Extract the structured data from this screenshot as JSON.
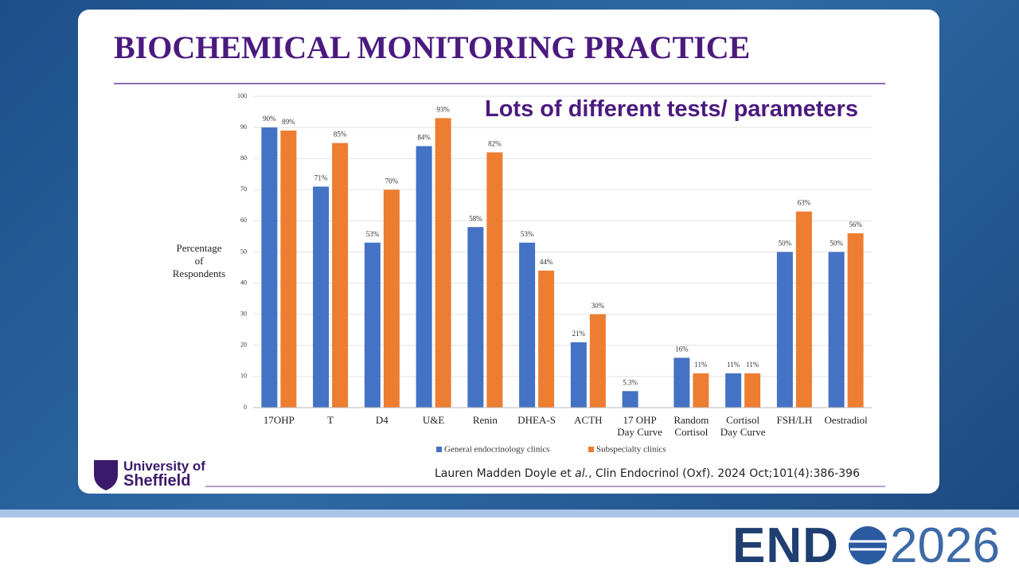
{
  "slide": {
    "title": "BIOCHEMICAL MONITORING PRACTICE",
    "annotation": "Lots of different tests/ parameters",
    "citation": {
      "authors": "Lauren Madden Doyle et ",
      "italic": "al.",
      "rest": ", Clin Endocrinol (Oxf). 2024 Oct;101(4):386-396"
    },
    "logo": {
      "line1": "University of",
      "line2": "Sheffield"
    },
    "event": {
      "name": "END",
      "year": "2026"
    }
  },
  "chart_data": {
    "type": "bar",
    "y_label": "Percentage\nof\nRespondents",
    "categories": [
      "17OHP",
      "T",
      "D4",
      "U&E",
      "Renin",
      "DHEA-S",
      "ACTH",
      "17 OHP\nDay Curve",
      "Random\nCortisol",
      "Cortisol\nDay Curve",
      "FSH/LH",
      "Oestradiol"
    ],
    "series": [
      {
        "name": "General endocrinology clinics",
        "color": "#4472c4",
        "values": [
          90,
          71,
          53,
          84,
          58,
          53,
          21,
          5.3,
          16,
          11,
          50,
          50
        ],
        "value_labels": [
          "90%",
          "71%",
          "53%",
          "84%",
          "58%",
          "53%",
          "21%",
          "5.3%",
          "16%",
          "11%",
          "50%",
          "50%"
        ]
      },
      {
        "name": "Subspecialty clinics",
        "color": "#ed7d31",
        "values": [
          89,
          85,
          70,
          93,
          82,
          44,
          30,
          null,
          11,
          11,
          63,
          56
        ],
        "value_labels": [
          "89%",
          "85%",
          "70%",
          "93%",
          "82%",
          "44%",
          "30%",
          null,
          "11%",
          "11%",
          "63%",
          "56%"
        ]
      }
    ],
    "ylim": [
      0,
      100
    ],
    "yticks": [
      0,
      10,
      20,
      30,
      40,
      50,
      60,
      70,
      80,
      90,
      100
    ],
    "grid": true,
    "legend": "bottom"
  }
}
